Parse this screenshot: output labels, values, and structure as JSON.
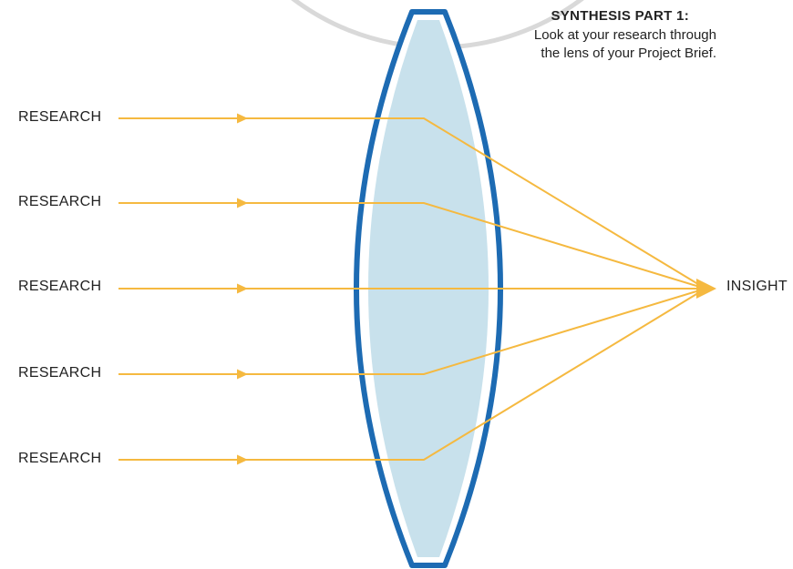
{
  "title": {
    "heading": "SYNTHESIS PART 1:",
    "line1": "Look at your research through",
    "line2": "the lens of your Project Brief."
  },
  "inputs": [
    "RESEARCH",
    "RESEARCH",
    "RESEARCH",
    "RESEARCH",
    "RESEARCH"
  ],
  "output": "INSIGHT",
  "colors": {
    "ray": "#F5B940",
    "lens_fill": "#C8E1EC",
    "lens_outline": "#1D6BB3",
    "circle": "#D9D9D9",
    "text": "#222222"
  }
}
